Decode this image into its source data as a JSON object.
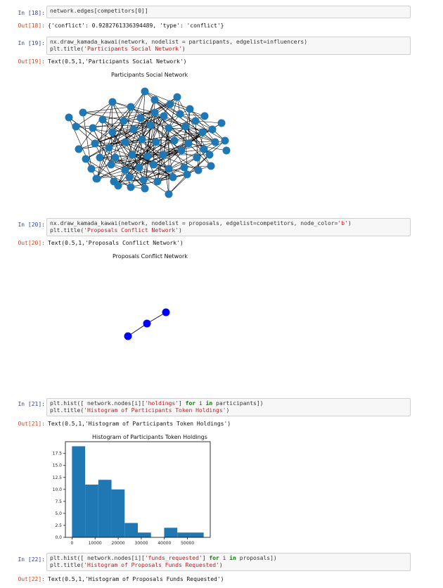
{
  "cells": {
    "c18": {
      "in_prompt": "In [18]:",
      "code_plain": "network.edges[competitors[0]]",
      "out_prompt": "Out[18]:",
      "output": "{'conflict': 0.9282761336394489, 'type': 'conflict'}"
    },
    "c19": {
      "in_prompt": "In [19]:",
      "code_line1": "nx.draw_kamada_kawai(network, nodelist = participants, edgelist=influencers)",
      "code_line2_pre": "plt.title(",
      "code_line2_str": "'Participants Social Network'",
      "code_line2_post": ")",
      "out_prompt": "Out[19]:",
      "output": "Text(0.5,1,'Participants Social Network')",
      "figure_title": "Participants Social Network"
    },
    "c20": {
      "in_prompt": "In [20]:",
      "code_line1_pre": "nx.draw_kamada_kawai(network, nodelist = proposals, edgelist=competitors, node_color=",
      "code_line1_str": "'b'",
      "code_line1_post": ")",
      "code_line2_pre": "plt.title(",
      "code_line2_str": "'Proposals Conflict Network'",
      "code_line2_post": ")",
      "out_prompt": "Out[20]:",
      "output": "Text(0.5,1,'Proposals Conflict Network')",
      "figure_title": "Proposals Conflict Network"
    },
    "c21": {
      "in_prompt": "In [21]:",
      "code_line1_pre": "plt.hist([ network.nodes[i][",
      "code_line1_str": "'holdings'",
      "code_line1_mid": "] ",
      "code_line1_kw1": "for",
      "code_line1_mid2": " i ",
      "code_line1_kw2": "in",
      "code_line1_post": " participants])",
      "code_line2_pre": "plt.title(",
      "code_line2_str": "'Histogram of Participants Token Holdings'",
      "code_line2_post": ")",
      "out_prompt": "Out[21]:",
      "output": "Text(0.5,1,'Histogram of Participants Token Holdings')"
    },
    "c22": {
      "in_prompt": "In [22]:",
      "code_line1_pre": "plt.hist([ network.nodes[i][",
      "code_line1_str": "'funds_requested'",
      "code_line1_mid": "] ",
      "code_line1_kw1": "for",
      "code_line1_mid2": " i ",
      "code_line1_kw2": "in",
      "code_line1_post": " proposals])",
      "code_line2_pre": "plt.title(",
      "code_line2_str": "'Histogram of Proposals Funds Requested'",
      "code_line2_post": ")",
      "out_prompt": "Out[22]:",
      "output": "Text(0.5,1,'Histogram of Proposals Funds Requested')"
    }
  },
  "colors": {
    "node": "#1f77b4",
    "conflict_node": "#0000ff",
    "bar": "#1f77b4"
  },
  "chart_data": {
    "type": "bar",
    "title": "Histogram of Participants Token Holdings",
    "xlabel": "",
    "ylabel": "",
    "bin_edges": [
      0,
      5700,
      11400,
      17100,
      22800,
      28500,
      34200,
      39900,
      45600,
      51300,
      57000
    ],
    "values": [
      19,
      11,
      12,
      10,
      3,
      1,
      0,
      2,
      1,
      1
    ],
    "xticks": [
      0,
      10000,
      20000,
      30000,
      40000,
      50000
    ],
    "xtick_labels": [
      "0",
      "10000",
      "20000",
      "30000",
      "40000",
      "50000"
    ],
    "yticks": [
      0,
      2.5,
      5,
      7.5,
      10,
      12.5,
      15,
      17.5
    ],
    "ytick_labels": [
      "0.0",
      "2.5",
      "5.0",
      "7.5",
      "10.0",
      "12.5",
      "15.0",
      "17.5"
    ],
    "xlim": [
      -2850,
      59850
    ],
    "ylim": [
      0,
      19.95
    ],
    "grid": false
  }
}
